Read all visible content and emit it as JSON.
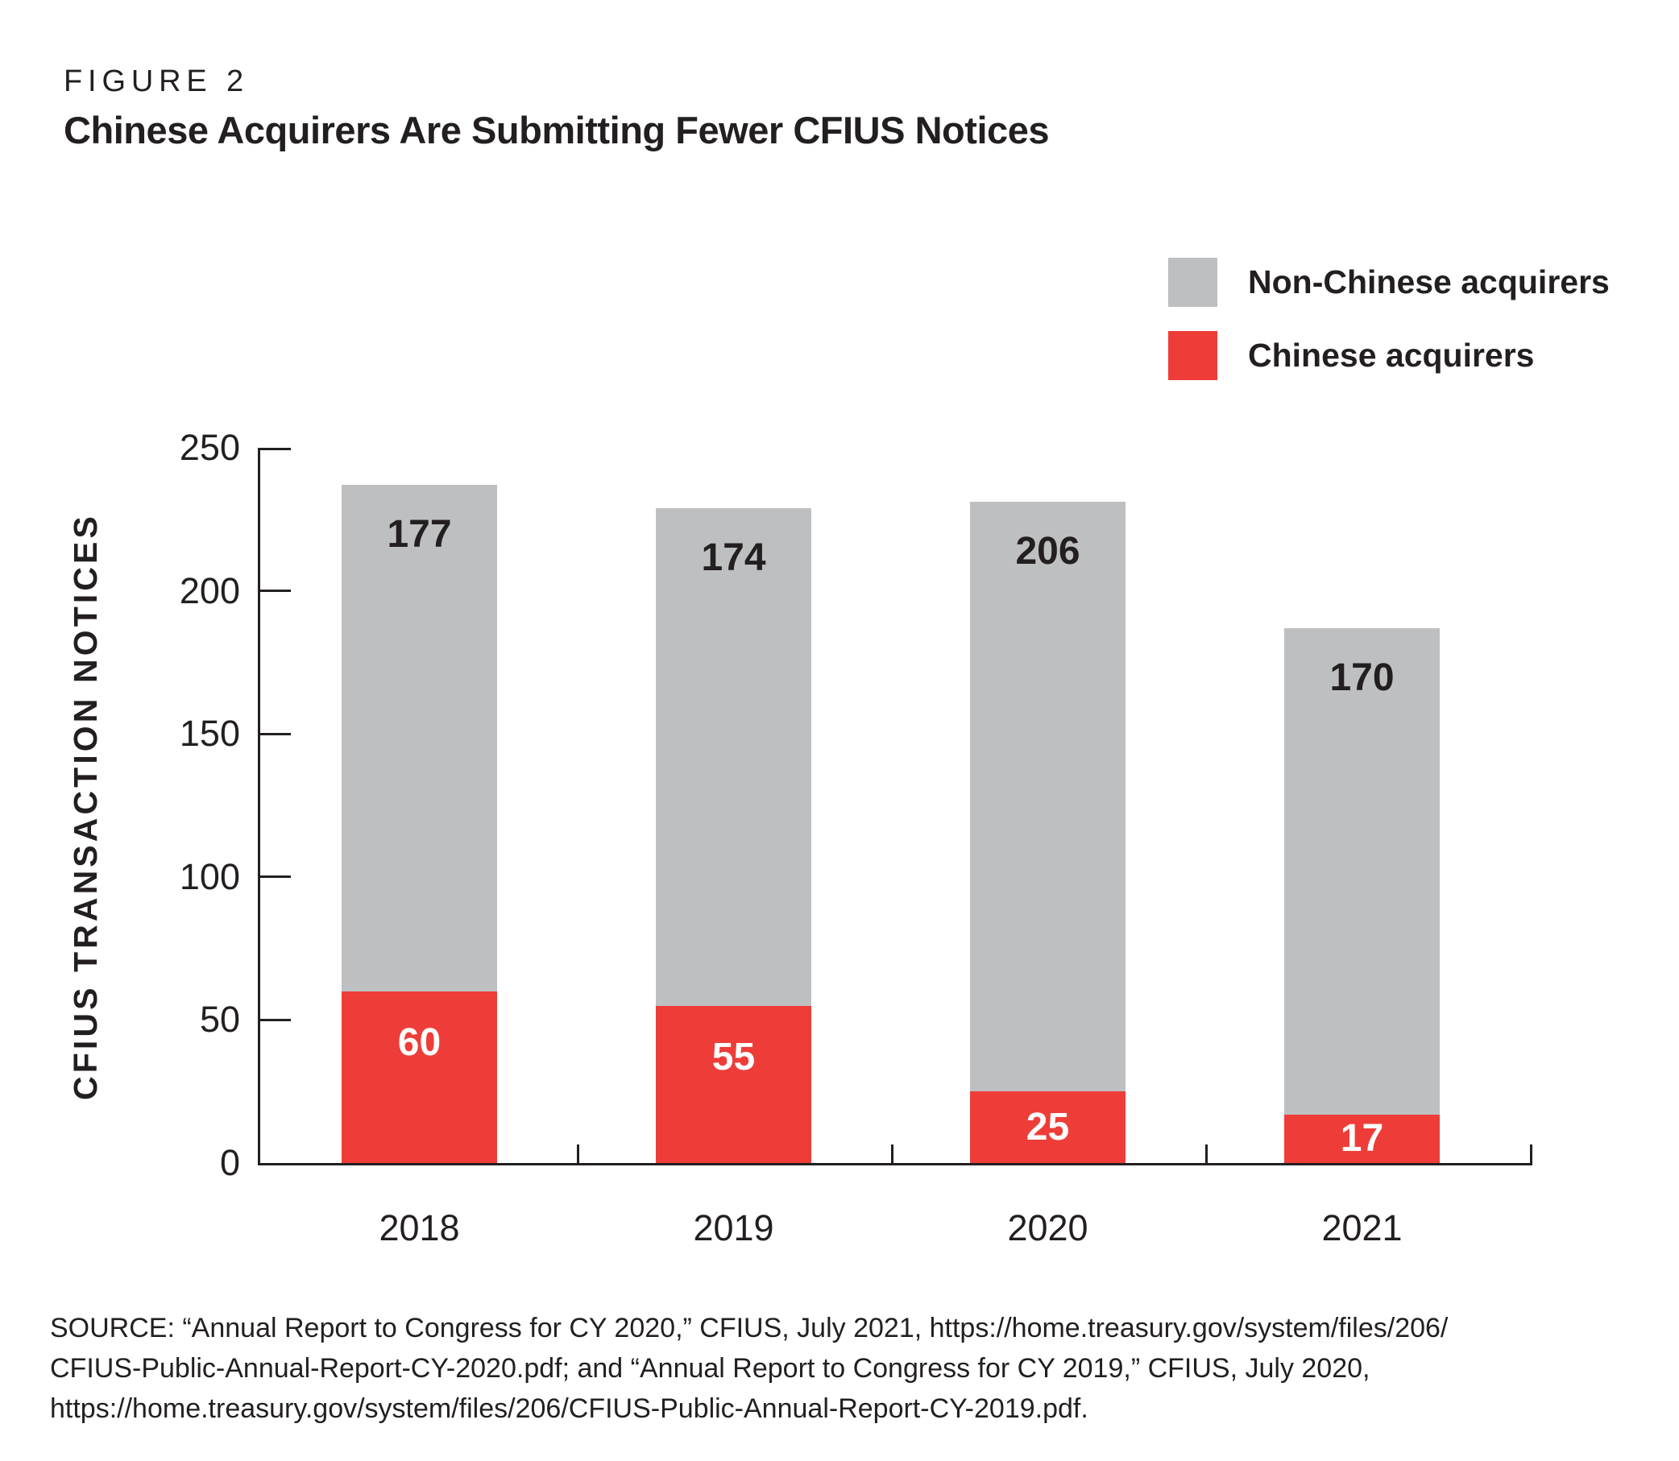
{
  "figure_label": "FIGURE 2",
  "title": "Chinese Acquirers Are Submitting Fewer CFIUS Notices",
  "legend": [
    {
      "label": "Non-Chinese acquirers",
      "color": "#bdbfc1"
    },
    {
      "label": "Chinese acquirers",
      "color": "#ee3d38"
    }
  ],
  "chart_data": {
    "type": "bar",
    "stacked": true,
    "categories": [
      "2018",
      "2019",
      "2020",
      "2021"
    ],
    "series": [
      {
        "name": "Chinese acquirers",
        "color": "#ee3d38",
        "label_color": "#ffffff",
        "values": [
          60,
          55,
          25,
          17
        ]
      },
      {
        "name": "Non-Chinese acquirers",
        "color": "#bdbfc1",
        "label_color": "#231f20",
        "values": [
          177,
          174,
          206,
          170
        ]
      }
    ],
    "totals": [
      237,
      229,
      231,
      187
    ],
    "title": "Chinese Acquirers Are Submitting Fewer CFIUS Notices",
    "xlabel": "",
    "ylabel": "CFIUS TRANSACTION NOTICES",
    "ylim": [
      0,
      250
    ],
    "yticks": [
      0,
      50,
      100,
      150,
      200,
      250
    ],
    "grid": false,
    "legend_position": "top-right"
  },
  "source": {
    "lines": [
      "SOURCE: “Annual Report to Congress for CY 2020,” CFIUS, July 2021, https://home.treasury.gov/system/files/206/",
      "CFIUS-Public-Annual-Report-CY-2020.pdf; and “Annual Report to Congress for CY 2019,” CFIUS, July 2020,",
      "https://home.treasury.gov/system/files/206/CFIUS-Public-Annual-Report-CY-2019.pdf."
    ]
  },
  "colors": {
    "chinese_red": "#ee3d38",
    "non_chinese_gray": "#bdbfc1",
    "text_black": "#231f20",
    "background": "#ffffff"
  }
}
